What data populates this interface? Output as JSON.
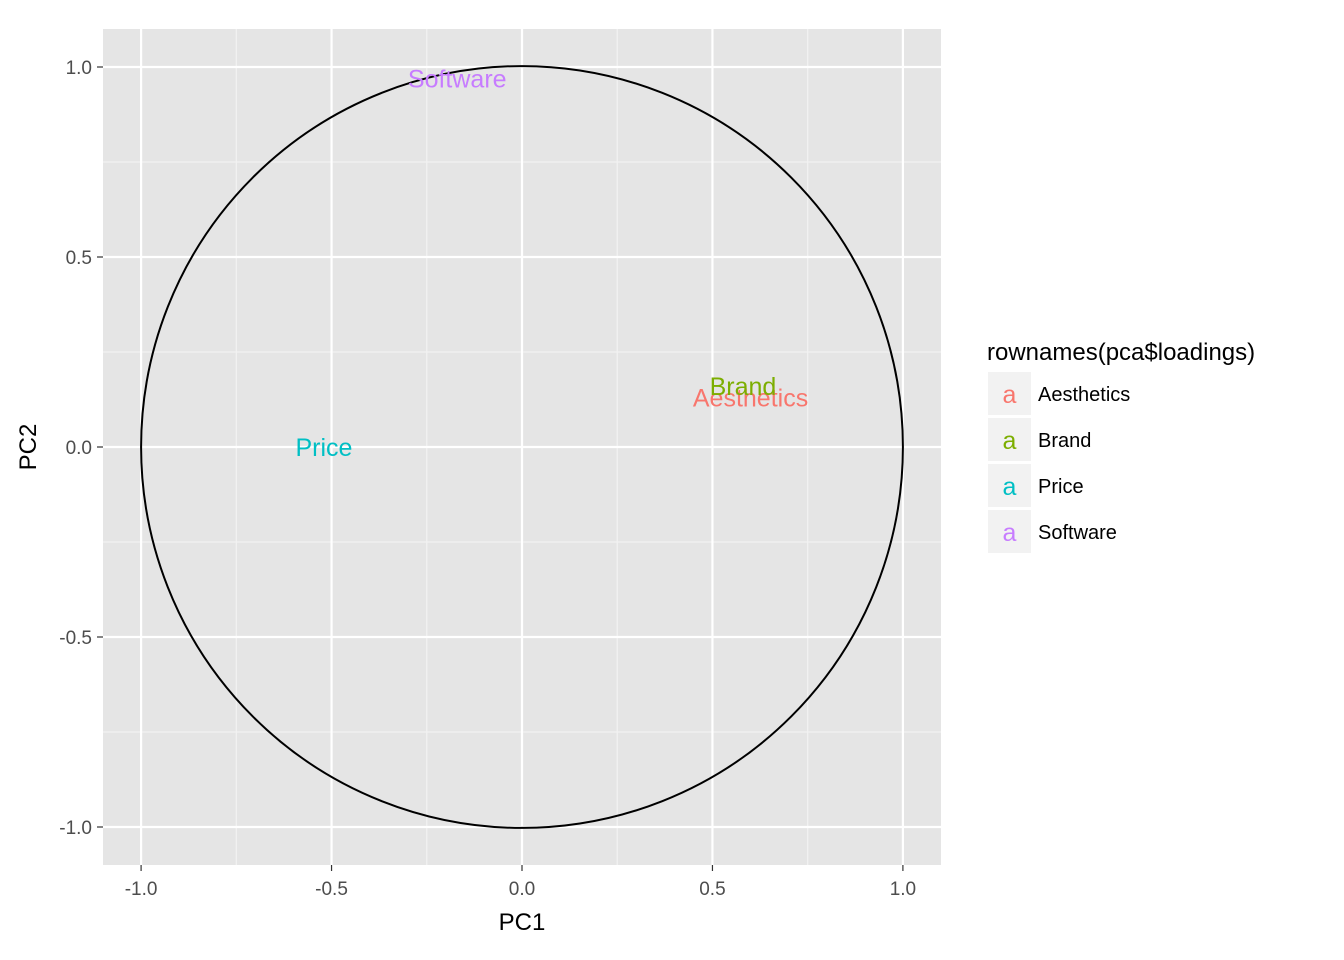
{
  "chart_data": {
    "type": "scatter",
    "xlabel": "PC1",
    "ylabel": "PC2",
    "xlim": [
      -1.1,
      1.1
    ],
    "ylim": [
      -1.1,
      1.1
    ],
    "x_ticks": [
      -1.0,
      -0.5,
      0.0,
      0.5,
      1.0
    ],
    "y_ticks": [
      -1.0,
      -0.5,
      0.0,
      0.5,
      1.0
    ],
    "x_tick_labels": [
      "-1.0",
      "-0.5",
      "0.0",
      "0.5",
      "1.0"
    ],
    "y_tick_labels": [
      "-1.0",
      "-0.5",
      "0.0",
      "0.5",
      "1.0"
    ],
    "grid": true,
    "unit_circle": {
      "center": [
        0,
        0
      ],
      "radius": 1.0
    },
    "legend_placement": "right",
    "legend_title": "rownames(pca$loadings)",
    "legend_glyph": "a",
    "series": [
      {
        "name": "Aesthetics",
        "color": "#F8766D",
        "x": 0.6,
        "y": 0.13
      },
      {
        "name": "Brand",
        "color": "#7CAE00",
        "x": 0.58,
        "y": 0.16
      },
      {
        "name": "Price",
        "color": "#00BFC4",
        "x": -0.52,
        "y": 0.0
      },
      {
        "name": "Software",
        "color": "#C77CFF",
        "x": -0.17,
        "y": 0.97
      }
    ]
  }
}
